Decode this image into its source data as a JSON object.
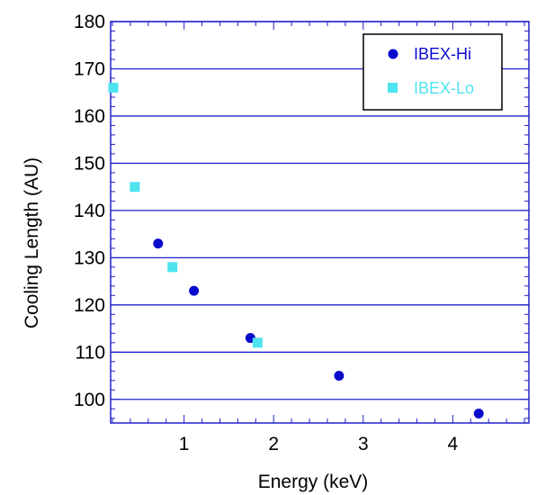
{
  "chart_data": {
    "type": "scatter",
    "xlabel": "Energy (keV)",
    "ylabel": "Cooling Length (AU)",
    "xlim": [
      0.18,
      4.85
    ],
    "ylim": [
      95,
      180
    ],
    "xticks": [
      1,
      2,
      3,
      4
    ],
    "xtick_labels": [
      "1",
      "2",
      "3",
      "4"
    ],
    "yticks": [
      100,
      110,
      120,
      130,
      140,
      150,
      160,
      170,
      180
    ],
    "ytick_labels": [
      "100",
      "110",
      "120",
      "130",
      "140",
      "150",
      "160",
      "170",
      "180"
    ],
    "grid": "horizontal",
    "legend_position": "top-right",
    "colors": {
      "grid": "#2020cc",
      "axis": "#2020cc"
    },
    "series": [
      {
        "name": "IBEX-Hi",
        "marker": "circle",
        "color": "#0a0acd",
        "x": [
          0.71,
          1.11,
          1.74,
          2.73,
          4.29
        ],
        "y": [
          133,
          123,
          113,
          105,
          97
        ]
      },
      {
        "name": "IBEX-Lo",
        "marker": "square",
        "color": "#4fe3f0",
        "x": [
          0.21,
          0.45,
          0.87,
          1.82
        ],
        "y": [
          166,
          145,
          128,
          112
        ]
      }
    ]
  }
}
